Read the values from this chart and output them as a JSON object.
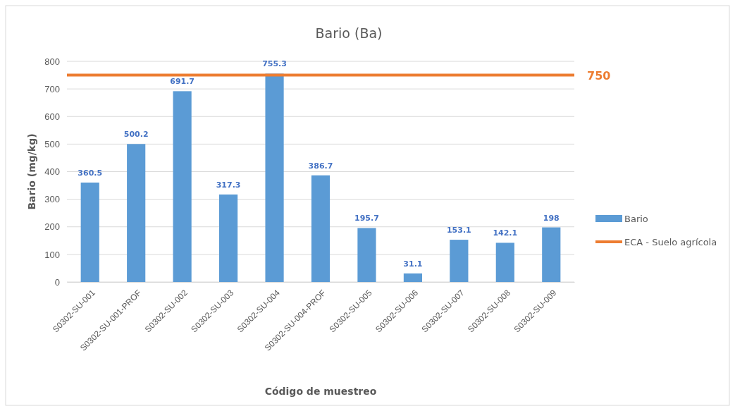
{
  "chart_data": {
    "type": "bar",
    "title": "Bario (Ba)",
    "xlabel": "Código de muestreo",
    "ylabel": "Bario (mg/kg)",
    "categories": [
      "S0302-SU-001",
      "S0302-SU-001-PROF",
      "S0302-SU-002",
      "S0302-SU-003",
      "S0302-SU-004",
      "S0302-SU-004-PROF",
      "S0302-SU-005",
      "S0302-SU-006",
      "S0302-SU-007",
      "S0302-SU-008",
      "S0302-SU-009"
    ],
    "series": [
      {
        "name": "Bario",
        "color": "#5b9bd5",
        "values": [
          360.5,
          500.2,
          691.7,
          317.3,
          755.3,
          386.7,
          195.7,
          31.1,
          153.1,
          142.1,
          198
        ]
      }
    ],
    "ref_lines": [
      {
        "axis": "y",
        "value": 750,
        "label": "ECA - Suelo agrícola",
        "color": "#ed7d31"
      }
    ],
    "annotations": [
      "750"
    ],
    "ylim": [
      0,
      800
    ],
    "yticks": [
      0,
      100,
      200,
      300,
      400,
      500,
      600,
      700,
      800
    ],
    "grid": "y",
    "data_labels": true,
    "legend": "right"
  }
}
